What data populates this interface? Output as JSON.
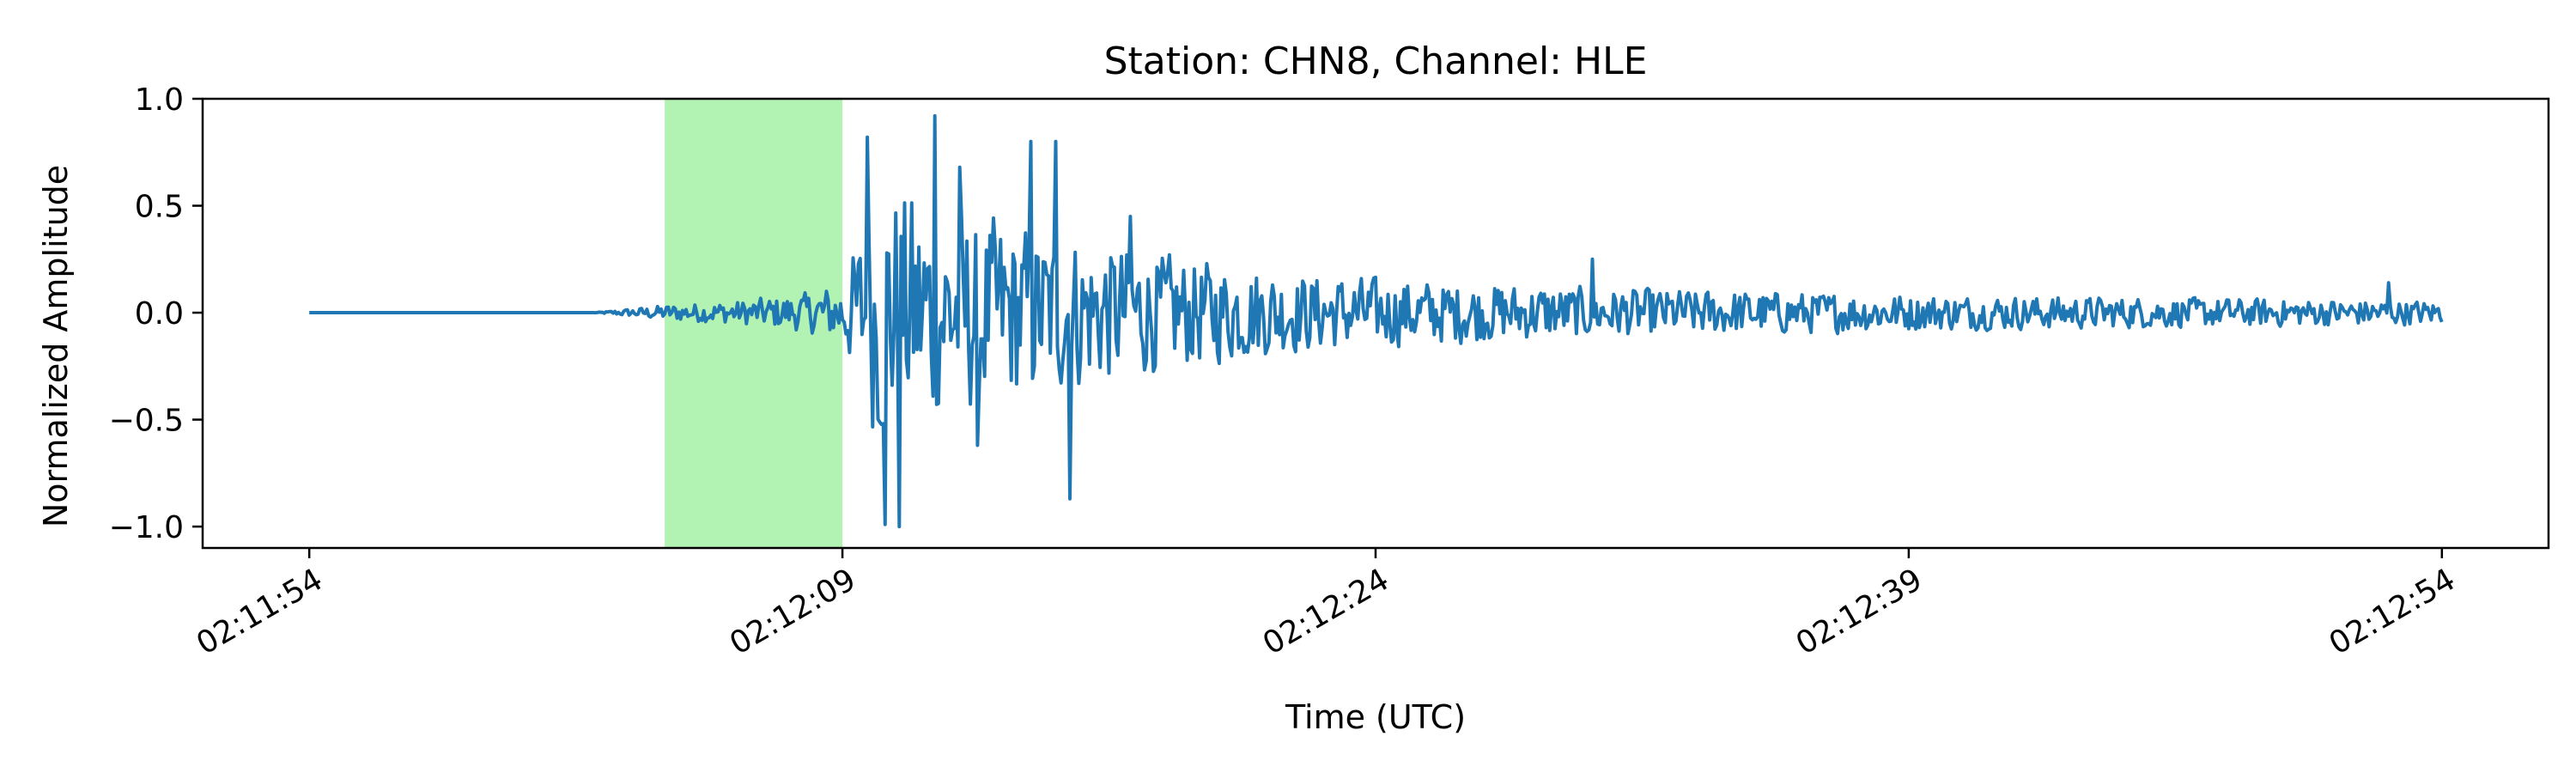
{
  "chart_data": {
    "type": "line",
    "title": "Station: CHN8, Channel: HLE",
    "xlabel": "Time (UTC)",
    "ylabel": "Normalized Amplitude",
    "x_time_range": [
      "02:11:54",
      "02:12:54"
    ],
    "xlim": [
      "02:11:51",
      "02:12:57"
    ],
    "ylim": [
      -1.1,
      1.0
    ],
    "x_ticks": [
      "02:11:54",
      "02:12:09",
      "02:12:24",
      "02:12:39",
      "02:12:54"
    ],
    "x_tick_rotation_deg": 30,
    "y_ticks": [
      1.0,
      0.5,
      0.0,
      -0.5,
      -1.0
    ],
    "y_tick_labels": [
      "1.0",
      "0.5",
      "0.0",
      "−0.5",
      "−1.0"
    ],
    "grid": false,
    "legend": "none",
    "highlight_window": {
      "start": "02:12:04",
      "end": "02:12:09",
      "color": "#b2f2b2"
    },
    "series": [
      {
        "color": "#1f77b4",
        "sample_rate_hz": 20,
        "envelope": {
          "t": [
            "02:11:54",
            "02:12:02",
            "02:12:03",
            "02:12:04",
            "02:12:06",
            "02:12:08",
            "02:12:09",
            "02:12:10",
            "02:12:12",
            "02:12:14",
            "02:12:16",
            "02:12:18",
            "02:12:22",
            "02:12:26",
            "02:12:30",
            "02:12:35",
            "02:12:40",
            "02:12:45",
            "02:12:50",
            "02:12:54"
          ],
          "amplitude": [
            0.0,
            0.0,
            0.02,
            0.04,
            0.06,
            0.1,
            0.16,
            0.7,
            0.55,
            0.45,
            0.38,
            0.3,
            0.2,
            0.16,
            0.13,
            0.11,
            0.09,
            0.08,
            0.07,
            0.06
          ]
        },
        "peaks": [
          {
            "t": "02:12:09.7",
            "value": 0.82
          },
          {
            "t": "02:12:10.2",
            "value": -0.99
          },
          {
            "t": "02:12:10.6",
            "value": -1.0
          },
          {
            "t": "02:12:11.6",
            "value": 0.92
          },
          {
            "t": "02:12:12.3",
            "value": 0.68
          },
          {
            "t": "02:12:12.8",
            "value": -0.62
          },
          {
            "t": "02:12:14.3",
            "value": 0.8
          },
          {
            "t": "02:12:15.0",
            "value": 0.8
          },
          {
            "t": "02:12:15.4",
            "value": -0.87
          },
          {
            "t": "02:12:17.1",
            "value": 0.45
          },
          {
            "t": "02:12:30.1",
            "value": 0.25
          },
          {
            "t": "02:12:52.5",
            "value": 0.14
          }
        ]
      }
    ]
  }
}
